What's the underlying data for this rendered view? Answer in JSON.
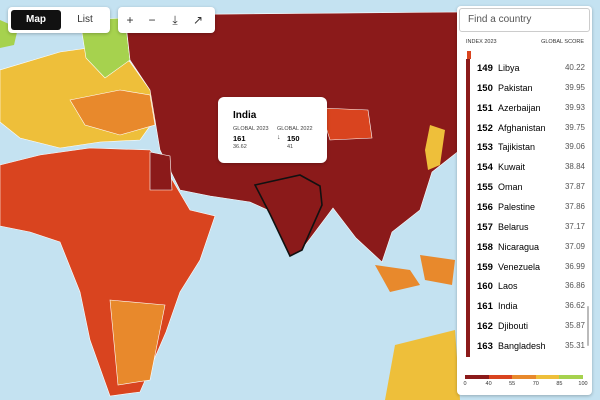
{
  "toolbar": {
    "tabs": [
      "Map",
      "List"
    ]
  },
  "search": {
    "placeholder": "Find a country"
  },
  "ranking": {
    "headers": [
      "INDEX 2023",
      "GLOBAL SCORE"
    ],
    "rows": [
      [
        "149",
        "Libya",
        "40.22"
      ],
      [
        "150",
        "Pakistan",
        "39.95"
      ],
      [
        "151",
        "Azerbaijan",
        "39.93"
      ],
      [
        "152",
        "Afghanistan",
        "39.75"
      ],
      [
        "153",
        "Tajikistan",
        "39.06"
      ],
      [
        "154",
        "Kuwait",
        "38.84"
      ],
      [
        "155",
        "Oman",
        "37.87"
      ],
      [
        "156",
        "Palestine",
        "37.86"
      ],
      [
        "157",
        "Belarus",
        "37.17"
      ],
      [
        "158",
        "Nicaragua",
        "37.09"
      ],
      [
        "159",
        "Venezuela",
        "36.99"
      ],
      [
        "160",
        "Laos",
        "36.86"
      ],
      [
        "161",
        "India",
        "36.62"
      ],
      [
        "162",
        "Djibouti",
        "35.87"
      ],
      [
        "163",
        "Bangladesh",
        "35.31"
      ]
    ]
  },
  "tooltip": {
    "country": "India",
    "current": {
      "label": "GLOBAL 2023",
      "rank": "161",
      "score": "36.62"
    },
    "previous": {
      "label": "GLOBAL 2022",
      "rank": "150",
      "score": "41"
    }
  },
  "legend": {
    "stops": [
      "0",
      "40",
      "55",
      "70",
      "85",
      "100"
    ],
    "colors": [
      "#8b1a1a",
      "#d9441f",
      "#e8892c",
      "#eebf3a",
      "#a6d24e"
    ]
  }
}
